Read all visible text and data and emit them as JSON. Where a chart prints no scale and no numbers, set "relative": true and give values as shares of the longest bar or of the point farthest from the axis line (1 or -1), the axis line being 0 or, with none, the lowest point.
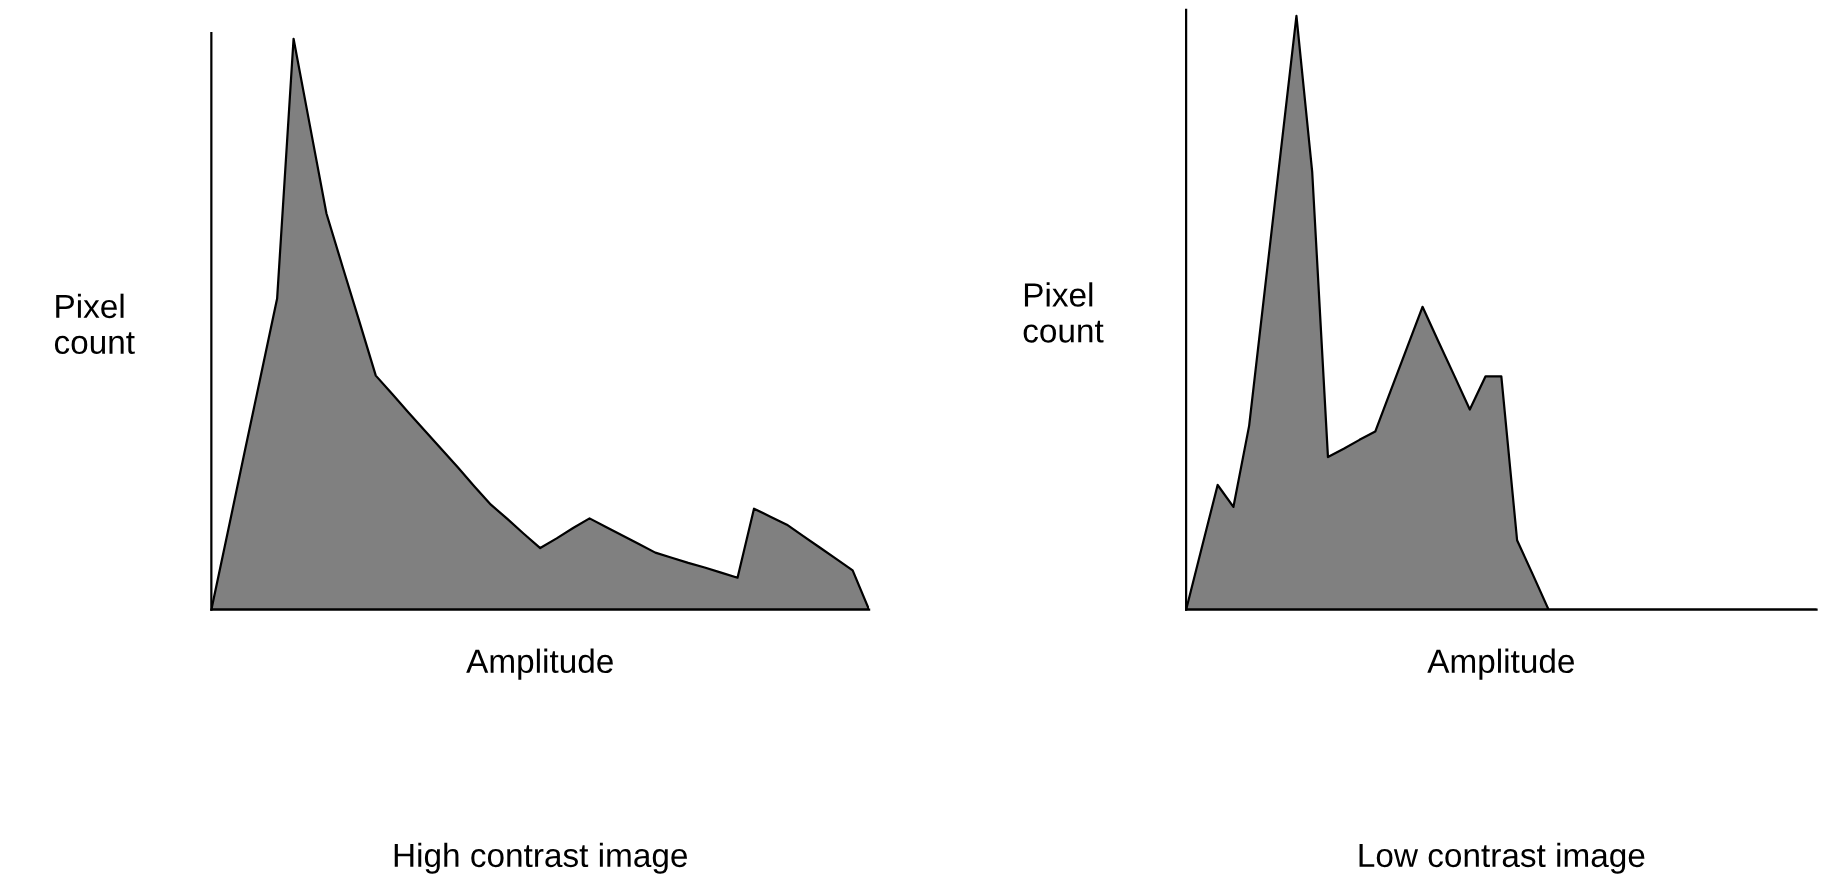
{
  "chart_data": [
    {
      "type": "area",
      "title": "High contrast image",
      "xlabel": "Amplitude",
      "ylabel": "Pixel\ncount",
      "relative": true,
      "tick_labels": false,
      "categories": [
        null,
        null,
        null,
        null,
        null,
        null,
        null,
        null,
        null,
        null,
        null,
        null,
        null,
        null,
        null,
        null,
        null,
        null,
        null,
        null,
        null,
        null,
        null,
        null,
        null,
        null,
        null,
        null,
        null,
        null,
        null,
        null,
        null,
        null,
        null,
        null,
        null,
        null,
        null,
        null,
        null
      ],
      "series": [
        {
          "color": "#808080",
          "values": [
            0,
            0.136,
            0.273,
            0.409,
            0.545,
            1,
            0.847,
            0.694,
            0.599,
            0.505,
            0.41,
            0.378,
            0.345,
            0.313,
            0.281,
            0.249,
            0.216,
            0.184,
            0.159,
            0.133,
            0.108,
            0.125,
            0.143,
            0.16,
            0.145,
            0.13,
            0.115,
            0.1,
            0.091,
            0.082,
            0.074,
            0.065,
            0.056,
            0.177,
            0.163,
            0.149,
            0.129,
            0.109,
            0.089,
            0.069,
            0
          ]
        }
      ]
    },
    {
      "type": "area",
      "title": "Low contrast image",
      "xlabel": "Amplitude",
      "ylabel": "Pixel\ncount",
      "relative": true,
      "tick_labels": false,
      "categories": [
        null,
        null,
        null,
        null,
        null,
        null,
        null,
        null,
        null,
        null,
        null,
        null,
        null,
        null,
        null,
        null,
        null,
        null,
        null,
        null,
        null,
        null,
        null,
        null,
        null,
        null,
        null,
        null,
        null,
        null,
        null,
        null,
        null,
        null,
        null,
        null,
        null,
        null,
        null,
        null,
        null
      ],
      "series": [
        {
          "color": "#808080",
          "values": [
            0,
            0.105,
            0.21,
            0.173,
            0.31,
            0.54,
            0.77,
            1,
            0.737,
            0.257,
            0.271,
            0.286,
            0.3,
            0.37,
            0.44,
            0.51,
            0.452,
            0.395,
            0.337,
            0.393,
            0.393,
            0.117,
            0.059,
            0,
            0,
            0,
            0,
            0,
            0,
            0,
            0,
            0,
            0,
            0,
            0,
            0,
            0,
            0,
            0,
            0,
            0
          ]
        }
      ]
    }
  ]
}
